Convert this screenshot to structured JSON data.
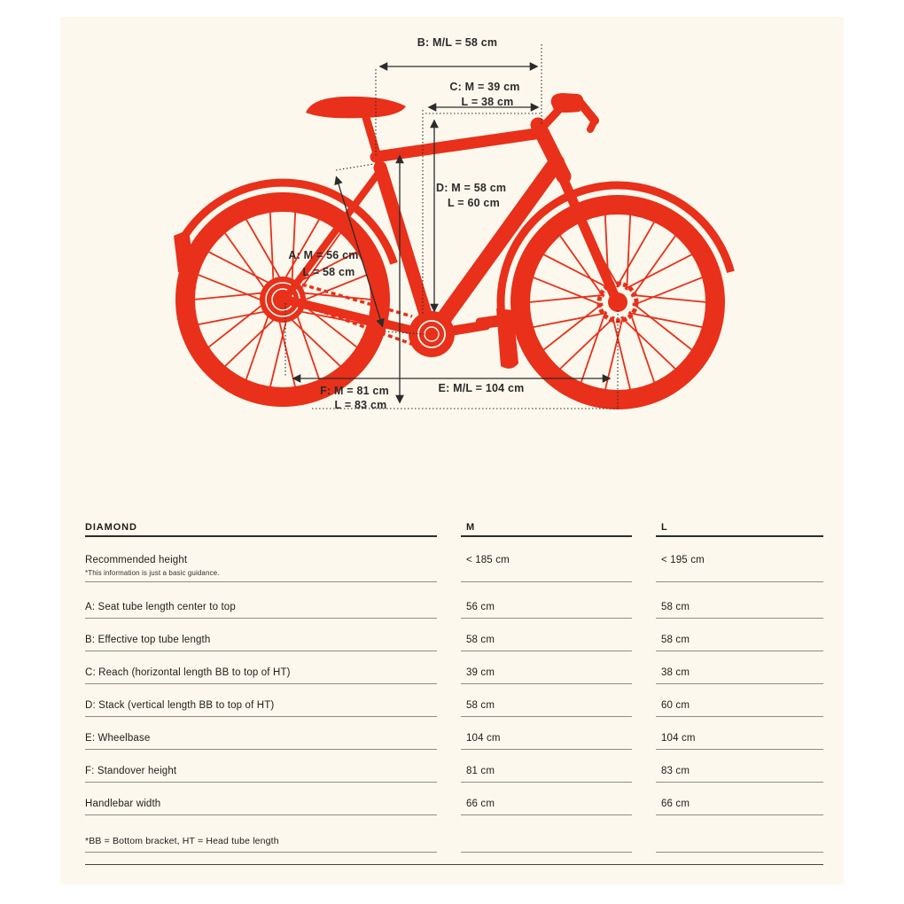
{
  "colors": {
    "bike_red": "#e8301a",
    "annotation": "#2b2b2b",
    "paper": "#fcf8ed",
    "row_line": "#8f8d85",
    "header_line": "#2e2d29"
  },
  "diagram": {
    "labels": {
      "A": {
        "line1": "A: M = 56 cm",
        "line2": "L = 58 cm"
      },
      "B": {
        "line1": "B: M/L = 58 cm"
      },
      "C": {
        "line1": "C: M = 39 cm",
        "line2": "L = 38 cm"
      },
      "D": {
        "line1": "D: M = 58 cm",
        "line2": "L = 60 cm"
      },
      "E": {
        "line1": "E: M/L = 104 cm"
      },
      "F": {
        "line1": "F: M = 81 cm",
        "line2": "L = 83 cm"
      }
    }
  },
  "table": {
    "header": {
      "name": "DIAMOND",
      "m": "M",
      "l": "L"
    },
    "rows": [
      {
        "label": "Recommended height",
        "note": "*This information is just a basic guidance.",
        "m": "< 185 cm",
        "l": "< 195 cm"
      },
      {
        "label": "A: Seat tube length center to top",
        "m": "56 cm",
        "l": "58 cm"
      },
      {
        "label": "B: Effective top tube length",
        "m": "58 cm",
        "l": "58 cm"
      },
      {
        "label": "C: Reach (horizontal length BB to top of HT)",
        "m": "39 cm",
        "l": "38 cm"
      },
      {
        "label": "D: Stack (vertical length BB to top of HT)",
        "m": "58 cm",
        "l": "60 cm"
      },
      {
        "label": "E: Wheelbase",
        "m": "104 cm",
        "l": "104 cm"
      },
      {
        "label": "F: Standover height",
        "m": "81 cm",
        "l": "83 cm"
      },
      {
        "label": "Handlebar width",
        "m": "66 cm",
        "l": "66 cm"
      },
      {
        "label": "*BB = Bottom bracket, HT = Head tube length",
        "m": "",
        "l": ""
      }
    ]
  }
}
